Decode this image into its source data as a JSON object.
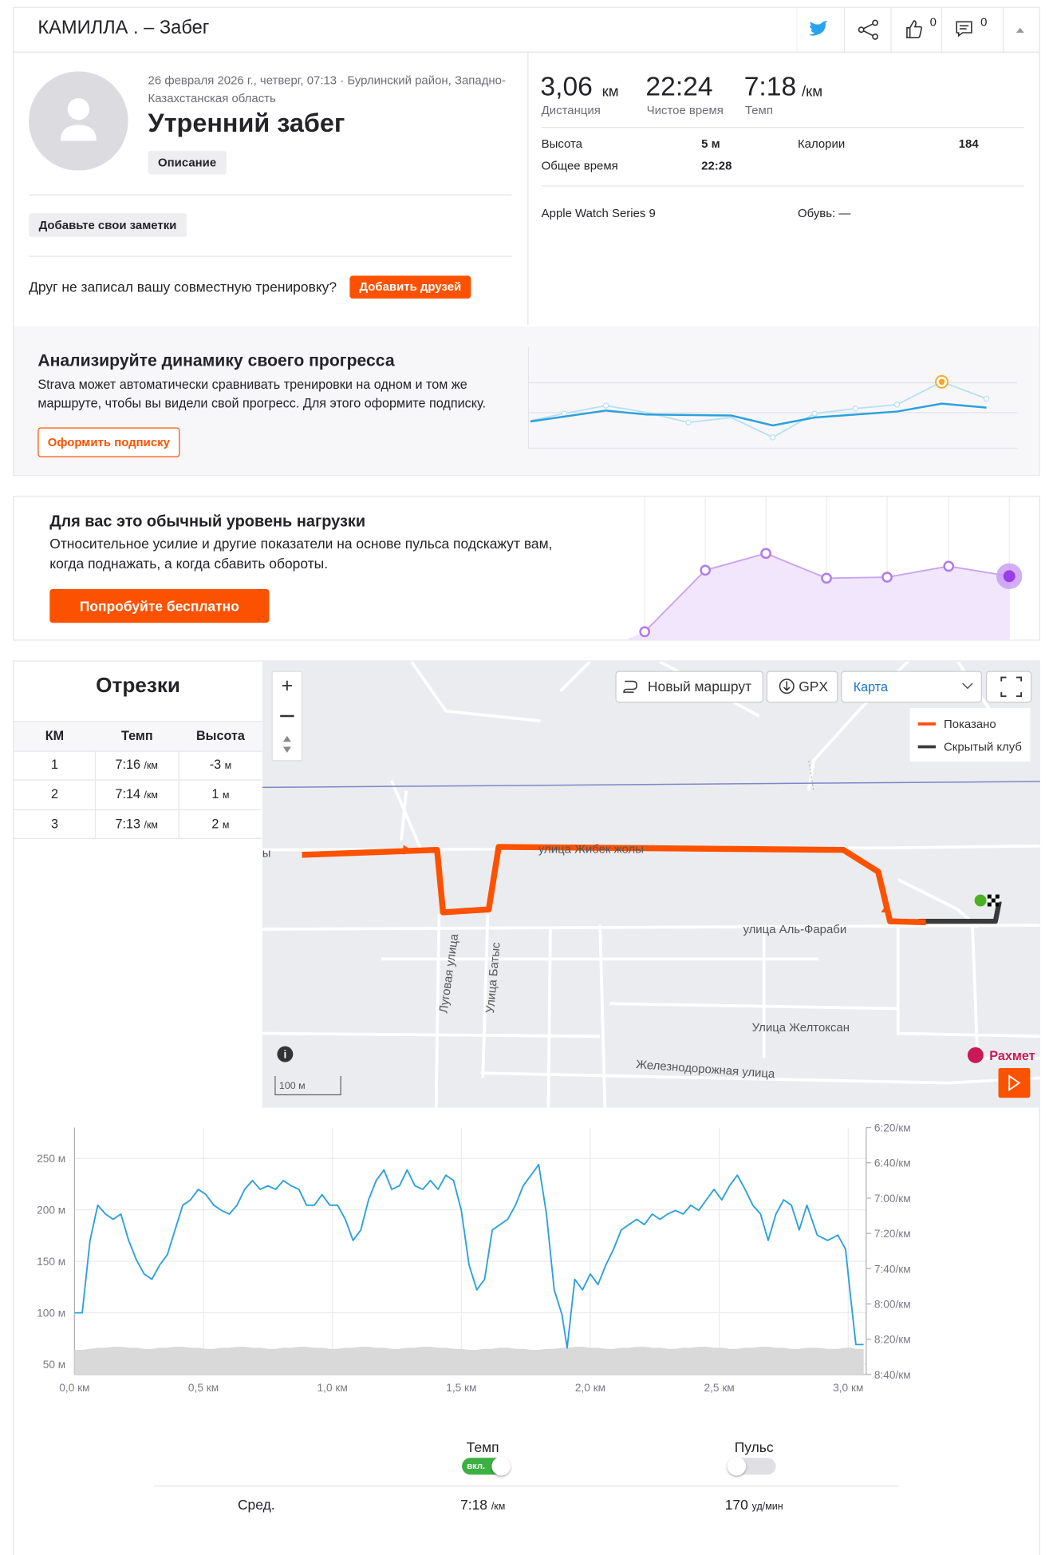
{
  "header": {
    "title": "КАМИЛЛА . – Забег",
    "kudos": "0",
    "comments": "0"
  },
  "activity": {
    "meta_line1": "26 февраля 2026 г., четверг, 07:13 · Бурлинский район, Западно-",
    "meta_line2": "Казахстанская область",
    "name": "Утренний забег",
    "description_button": "Описание",
    "notes_button": "Добавьте свои заметки",
    "friend_prompt": "Друг не записал вашу совместную тренировку?",
    "add_friends_button": "Добавить друзей"
  },
  "stats": {
    "distance": "3,06",
    "distance_unit": "км",
    "distance_label": "Дистанция",
    "moving_time": "22:24",
    "moving_time_label": "Чистое время",
    "pace": "7:18",
    "pace_unit": "/км",
    "pace_label": "Темп",
    "details": [
      {
        "label": "Высота",
        "value": "5 м"
      },
      {
        "label": "Калории",
        "value": "184"
      },
      {
        "label": "Общее время",
        "value": "22:28"
      }
    ],
    "device": "Apple Watch Series 9",
    "shoes": "Обувь: —"
  },
  "promo_progress": {
    "title": "Анализируйте динамику своего прогресса",
    "text_line1": "Strava может автоматически сравнивать тренировки на одном и том же",
    "text_line2": "маршруте, чтобы вы видели свой прогресс. Для этого оформите подписку.",
    "button": "Оформить подписку"
  },
  "promo_effort": {
    "title": "Для вас это обычный уровень нагрузки",
    "text_line1": "Относительное усилие и другие показатели на основе пульса подскажут вам,",
    "text_line2": "когда поднажать, а когда сбавить обороты.",
    "button": "Попробуйте бесплатно"
  },
  "segments": {
    "title": "Отрезки",
    "columns": [
      "КМ",
      "Темп",
      "Высота"
    ],
    "rows": [
      {
        "km": "1",
        "pace": "7:16",
        "pace_unit": "/км",
        "elevation": "-3",
        "elevation_unit": "м"
      },
      {
        "km": "2",
        "pace": "7:14",
        "pace_unit": "/км",
        "elevation": "1",
        "elevation_unit": "м"
      },
      {
        "km": "3",
        "pace": "7:13",
        "pace_unit": "/км",
        "elevation": "2",
        "elevation_unit": "м"
      }
    ]
  },
  "map": {
    "new_route": "Новый маршрут",
    "gpx": "GPX",
    "layer": "Карта",
    "legend": [
      "Показано",
      "Скрытый клуб"
    ],
    "streets": [
      "улица Жибек жолы",
      "улица Аль-Фараби",
      "Луговая улица",
      "Улица Батыс",
      "Улица Желтоксан",
      "Железнодорожная улица"
    ],
    "cut_label": "ы",
    "poi": "Рахмет",
    "scale": "100 м"
  },
  "chart_data": {
    "type": "line",
    "x": [
      0,
      0.03,
      0.06,
      0.09,
      0.12,
      0.15,
      0.18,
      0.21,
      0.24,
      0.27,
      0.3,
      0.33,
      0.36,
      0.39,
      0.42,
      0.45,
      0.48,
      0.51,
      0.54,
      0.57,
      0.6,
      0.63,
      0.66,
      0.69,
      0.72,
      0.75,
      0.78,
      0.81,
      0.84,
      0.87,
      0.9,
      0.93,
      0.96,
      0.99,
      1.02,
      1.05,
      1.08,
      1.11,
      1.14,
      1.17,
      1.2,
      1.23,
      1.26,
      1.29,
      1.32,
      1.35,
      1.38,
      1.41,
      1.44,
      1.47,
      1.5,
      1.53,
      1.56,
      1.59,
      1.62,
      1.65,
      1.68,
      1.71,
      1.74,
      1.77,
      1.8,
      1.83,
      1.86,
      1.89,
      1.91,
      1.94,
      1.97,
      2.0,
      2.03,
      2.06,
      2.09,
      2.12,
      2.15,
      2.18,
      2.21,
      2.24,
      2.27,
      2.3,
      2.33,
      2.36,
      2.39,
      2.42,
      2.45,
      2.48,
      2.51,
      2.54,
      2.57,
      2.6,
      2.63,
      2.66,
      2.69,
      2.72,
      2.75,
      2.78,
      2.81,
      2.84,
      2.88,
      2.92,
      2.96,
      2.99,
      3.01,
      3.03,
      3.06
    ],
    "series": [
      {
        "color": "#d9d9d9",
        "axis": "y",
        "area": true,
        "values": [
          64,
          64,
          65,
          66,
          66,
          67,
          67,
          66,
          66,
          65,
          65,
          66,
          66,
          67,
          67,
          66,
          66,
          65,
          65,
          66,
          66,
          67,
          67,
          66,
          66,
          65,
          65,
          66,
          66,
          67,
          67,
          66,
          66,
          65,
          65,
          66,
          66,
          67,
          67,
          66,
          66,
          65,
          65,
          66,
          66,
          67,
          67,
          66,
          66,
          65,
          65,
          64,
          64,
          65,
          65,
          66,
          66,
          65,
          65,
          64,
          64,
          65,
          65,
          66,
          66,
          67,
          67,
          66,
          66,
          65,
          65,
          66,
          66,
          67,
          67,
          66,
          66,
          65,
          65,
          66,
          66,
          67,
          67,
          66,
          66,
          65,
          65,
          66,
          66,
          67,
          67,
          66,
          66,
          65,
          65,
          66,
          66,
          65,
          65,
          66,
          66,
          65,
          65
        ]
      },
      {
        "name": "Темп",
        "color": "#2ba1dc",
        "axis": "y2",
        "values": [
          485,
          485,
          444,
          424,
          429,
          432,
          429,
          444,
          455,
          463,
          466,
          458,
          452,
          438,
          424,
          421,
          415,
          418,
          424,
          427,
          429,
          424,
          415,
          410,
          415,
          413,
          415,
          410,
          413,
          415,
          424,
          424,
          418,
          424,
          424,
          432,
          444,
          438,
          421,
          410,
          404,
          415,
          413,
          404,
          413,
          415,
          410,
          415,
          407,
          410,
          427,
          458,
          472,
          466,
          438,
          435,
          432,
          424,
          413,
          407,
          401,
          429,
          472,
          486,
          505,
          466,
          472,
          463,
          469,
          458,
          449,
          438,
          435,
          432,
          435,
          429,
          432,
          429,
          427,
          429,
          424,
          427,
          421,
          415,
          421,
          413,
          407,
          415,
          424,
          429,
          444,
          429,
          421,
          424,
          438,
          424,
          441,
          444,
          441,
          449,
          477,
          503,
          503
        ]
      }
    ],
    "xlim": [
      0,
      3.07
    ],
    "xticks": [
      {
        "value": 0,
        "label": "0,0 км"
      },
      {
        "value": 0.5,
        "label": "0,5 км"
      },
      {
        "value": 1,
        "label": "1,0 км"
      },
      {
        "value": 1.5,
        "label": "1,5 км"
      },
      {
        "value": 2,
        "label": "2,0 км"
      },
      {
        "value": 2.5,
        "label": "2,5 км"
      },
      {
        "value": 3,
        "label": "3,0 км"
      }
    ],
    "ylim": [
      40,
      280
    ],
    "yticks": [
      {
        "value": 50,
        "label": "50 м"
      },
      {
        "value": 100,
        "label": "100 м"
      },
      {
        "value": 150,
        "label": "150 м"
      },
      {
        "value": 200,
        "label": "200 м"
      },
      {
        "value": 250,
        "label": "250 м"
      }
    ],
    "y2lim": [
      520,
      380
    ],
    "y2ticks": [
      {
        "value": 380,
        "label": "6:20/км"
      },
      {
        "value": 400,
        "label": "6:40/км"
      },
      {
        "value": 420,
        "label": "7:00/км"
      },
      {
        "value": 440,
        "label": "7:20/км"
      },
      {
        "value": 460,
        "label": "7:40/км"
      },
      {
        "value": 480,
        "label": "8:00/км"
      },
      {
        "value": 500,
        "label": "8:20/км"
      },
      {
        "value": 520,
        "label": "8:40/км"
      }
    ],
    "grid": true
  },
  "chart_controls": {
    "pace_toggle_state": "вкл.",
    "heart_rate_label": "Пульс",
    "average_label": "Сред.",
    "average_pace": "7:18",
    "average_pace_unit": "/км",
    "average_hr": "170",
    "average_hr_unit": "уд/мин"
  }
}
